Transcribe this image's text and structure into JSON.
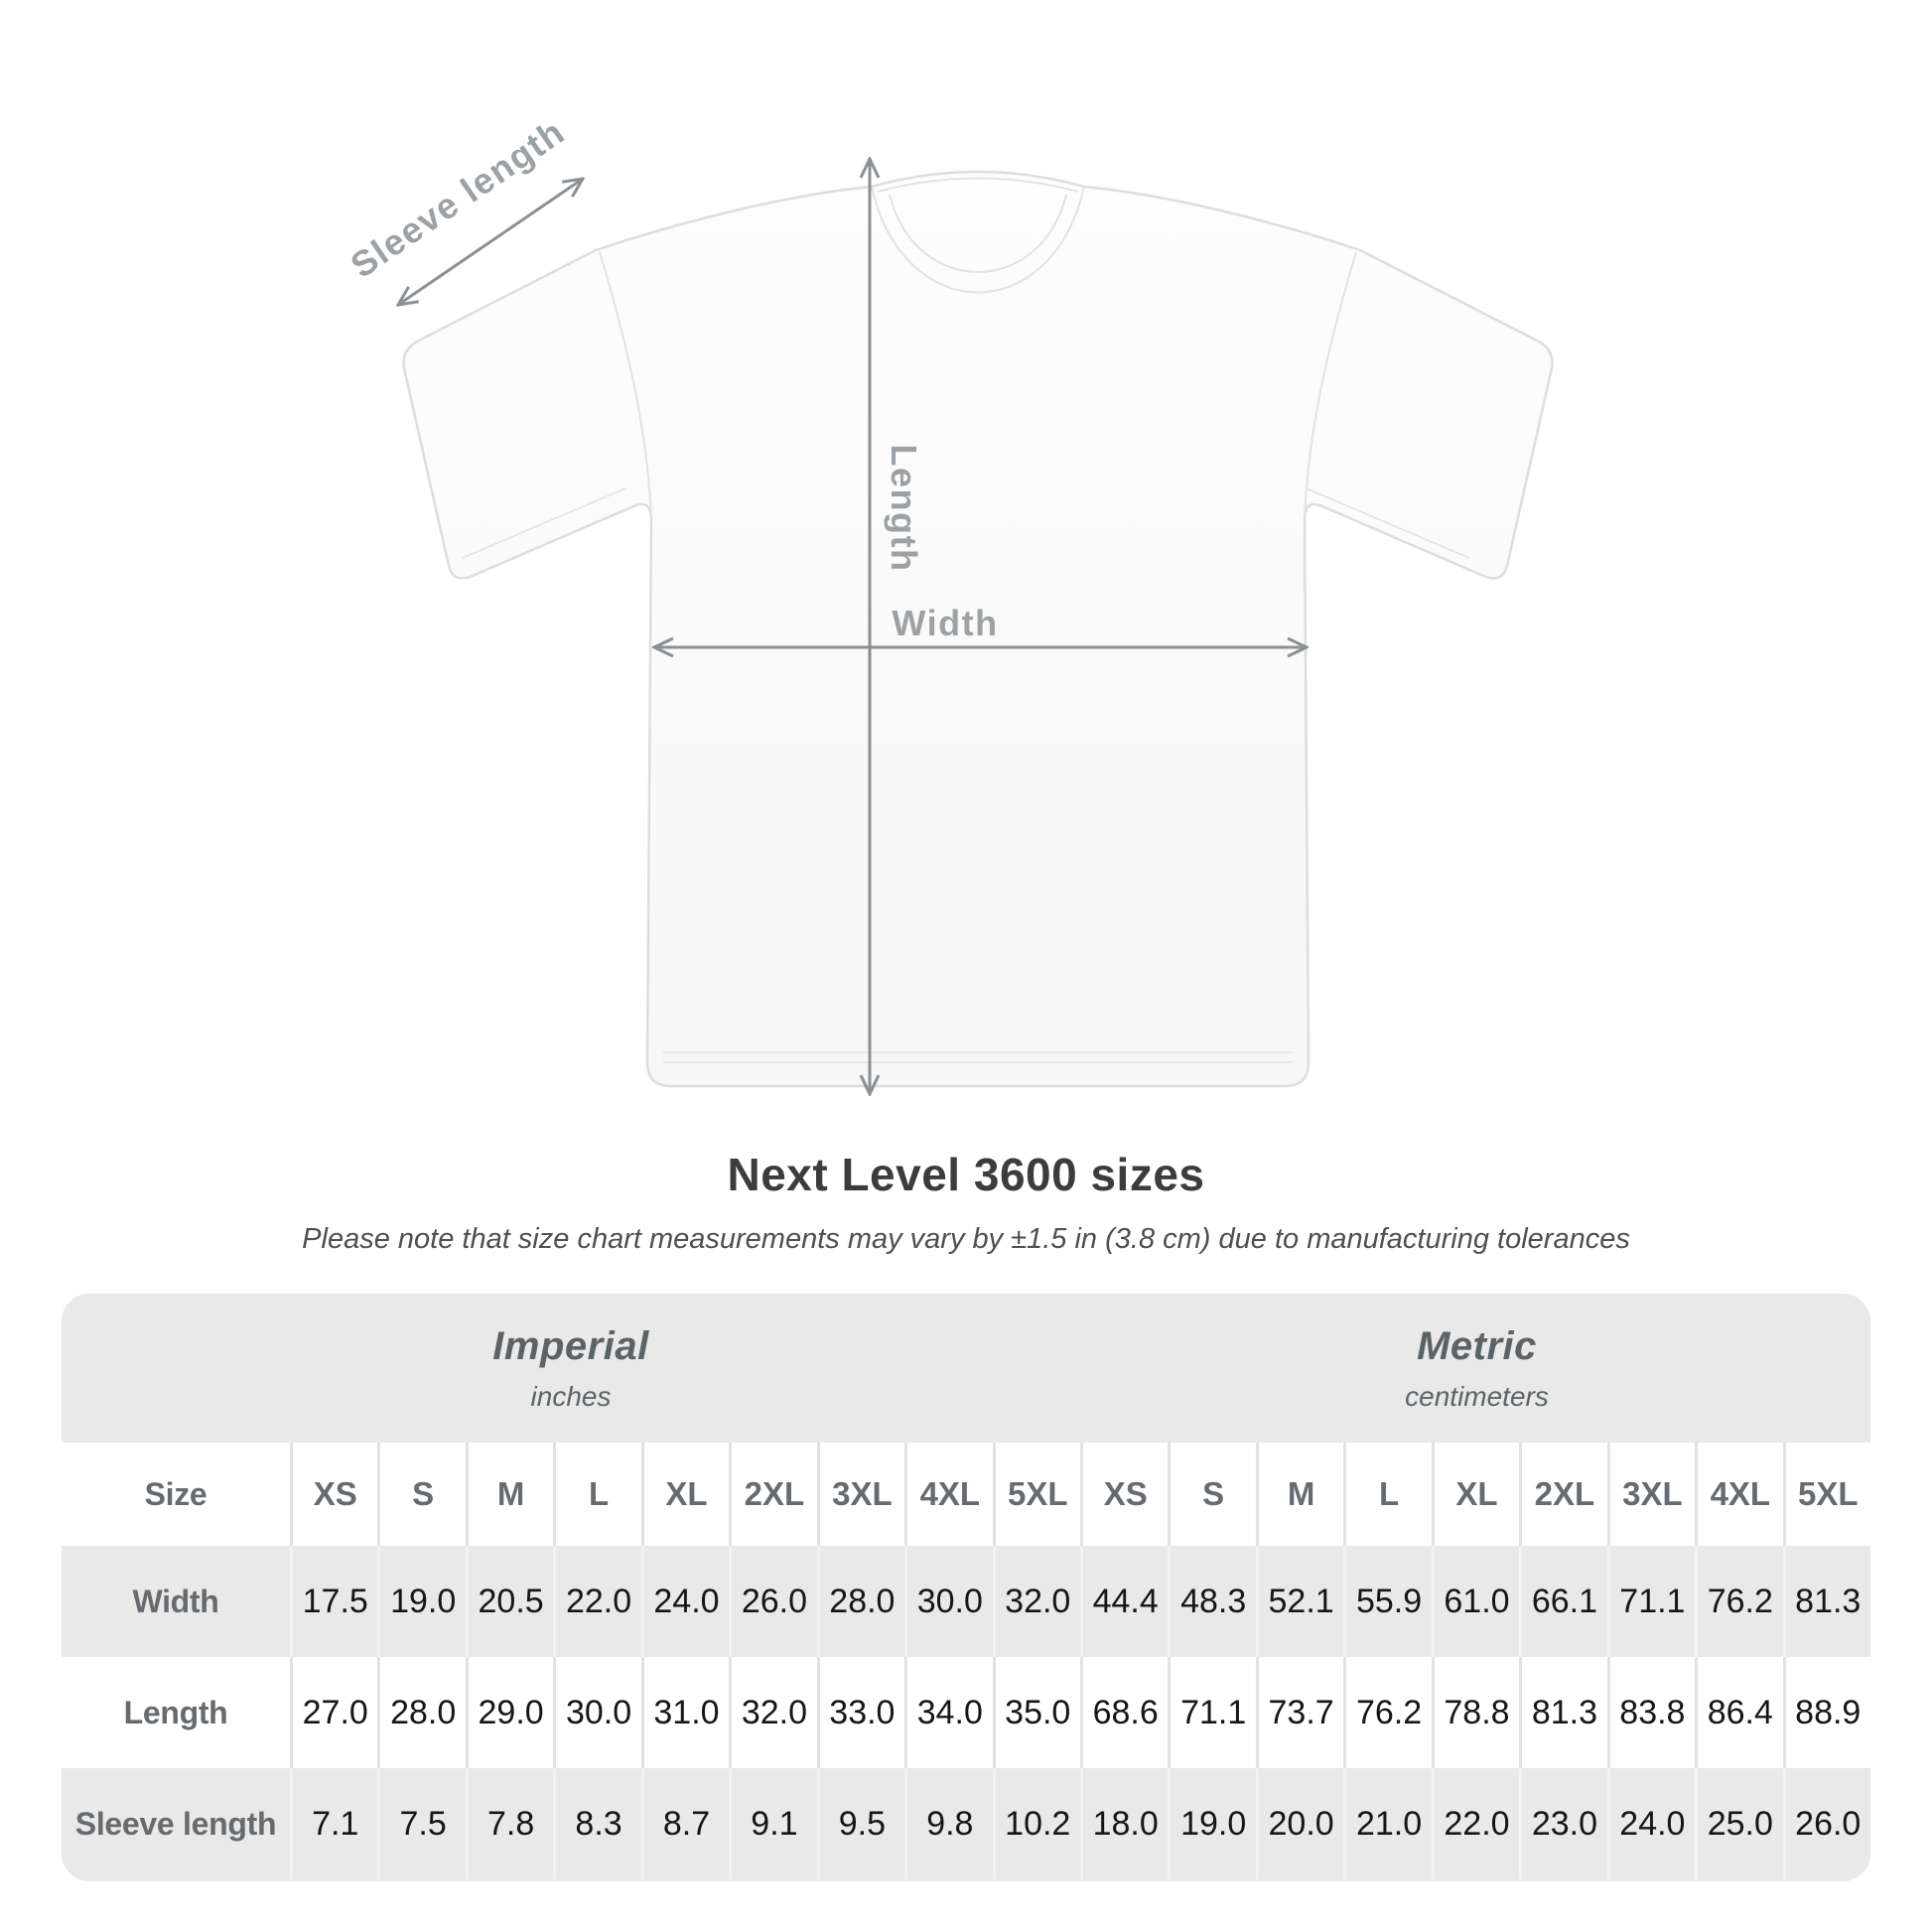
{
  "diagram": {
    "arrow_labels": {
      "sleeve": "Sleeve length",
      "length": "Length",
      "width": "Width"
    }
  },
  "title": "Next Level 3600 sizes",
  "subtitle": "Please note that size chart measurements may vary by ±1.5 in (3.8 cm) due to manufacturing tolerances",
  "chart_data": {
    "type": "table",
    "title": "Next Level 3600 sizes",
    "note": "Please note that size chart measurements may vary by ±1.5 in (3.8 cm) due to manufacturing tolerances",
    "corner_header": "Size",
    "unit_groups": [
      {
        "name": "Imperial",
        "unit": "inches"
      },
      {
        "name": "Metric",
        "unit": "centimeters"
      }
    ],
    "sizes": [
      "XS",
      "S",
      "M",
      "L",
      "XL",
      "2XL",
      "3XL",
      "4XL",
      "5XL"
    ],
    "rows": [
      {
        "label": "Width",
        "imperial": [
          "17.5",
          "19.0",
          "20.5",
          "22.0",
          "24.0",
          "26.0",
          "28.0",
          "30.0",
          "32.0"
        ],
        "metric": [
          "44.4",
          "48.3",
          "52.1",
          "55.9",
          "61.0",
          "66.1",
          "71.1",
          "76.2",
          "81.3"
        ]
      },
      {
        "label": "Length",
        "imperial": [
          "27.0",
          "28.0",
          "29.0",
          "30.0",
          "31.0",
          "32.0",
          "33.0",
          "34.0",
          "35.0"
        ],
        "metric": [
          "68.6",
          "71.1",
          "73.7",
          "76.2",
          "78.8",
          "81.3",
          "83.8",
          "86.4",
          "88.9"
        ]
      },
      {
        "label": "Sleeve length",
        "imperial": [
          "7.1",
          "7.5",
          "7.8",
          "8.3",
          "8.7",
          "9.1",
          "9.5",
          "9.8",
          "10.2"
        ],
        "metric": [
          "18.0",
          "19.0",
          "20.0",
          "21.0",
          "22.0",
          "23.0",
          "24.0",
          "25.0",
          "26.0"
        ]
      }
    ]
  },
  "colors": {
    "table_background": "#e9e9e9",
    "row_white": "#ffffff",
    "heading_text": "#3c3c3c",
    "muted_text": "#656b70",
    "value_text": "#161616",
    "arrow_gray": "#8a9093",
    "arrow_label_gray": "#9ba1a5"
  }
}
